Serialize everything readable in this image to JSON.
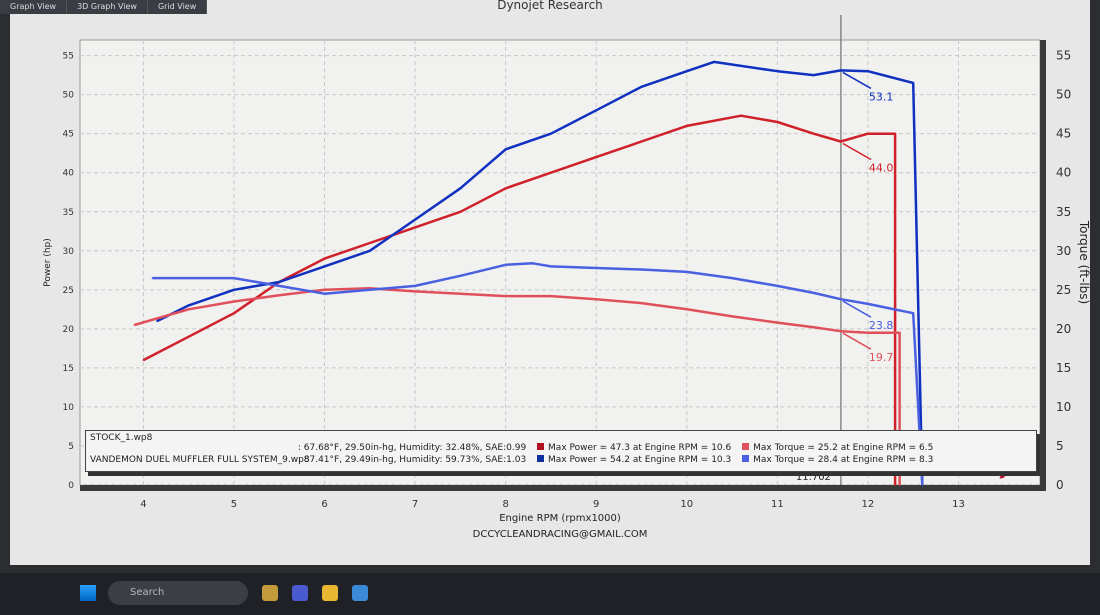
{
  "window": {
    "title": "Dynojet Research",
    "tabs": [
      "Graph View",
      "3D Graph View",
      "Grid View"
    ]
  },
  "taskbar": {
    "search_placeholder": "Search"
  },
  "legend": {
    "runs": [
      {
        "file": "STOCK_1.wp8",
        "conditions": ": 67.68°F, 29.50in-hg, Humidity: 32.48%, SAE:0.99",
        "max_power": "Max Power = 47.3 at Engine RPM = 10.6",
        "max_torque": "Max Torque = 25.2 at Engine RPM = 6.5",
        "color": "#d0202a",
        "torque_color": "#e0505a"
      },
      {
        "file": "VANDEMON DUEL MUFFLER FULL SYSTEM_9.wp8",
        "conditions": ": 87.41°F, 29.49in-hg, Humidity: 59.73%, SAE:1.03",
        "max_power": "Max Power = 54.2 at Engine RPM = 10.3",
        "max_torque": "Max Torque = 28.4 at Engine RPM = 8.3",
        "color": "#1030c0",
        "torque_color": "#4a60e0"
      }
    ]
  },
  "brand": "DYNOJET",
  "footer_email": "DCCYCLEANDRACING@GMAIL.COM",
  "chart_data": {
    "type": "line",
    "title": "Dynojet Research",
    "xlabel": "Engine RPM (rpmx1000)",
    "ylabel": "Power (hp)",
    "y2label": "Torque (ft-lbs)",
    "xlim": [
      3.3,
      13.9
    ],
    "ylim": [
      0,
      57
    ],
    "y2lim": [
      0,
      57
    ],
    "xticks": [
      4,
      5,
      6,
      7,
      8,
      9,
      10,
      11,
      12,
      13
    ],
    "yticks": [
      0,
      5,
      10,
      15,
      20,
      25,
      30,
      35,
      40,
      45,
      50,
      55
    ],
    "grid": true,
    "cursor": {
      "x": 11.702,
      "label": "11.702"
    },
    "series": [
      {
        "name": "STOCK_1.wp8 Power",
        "color": "#d0202a",
        "x": [
          4.0,
          4.5,
          5.0,
          5.5,
          6.0,
          6.5,
          7.0,
          7.5,
          8.0,
          8.5,
          9.0,
          9.5,
          10.0,
          10.6,
          11.0,
          11.4,
          11.7,
          12.0,
          12.3,
          12.3
        ],
        "y": [
          16,
          19,
          22,
          26,
          29,
          31,
          33,
          35,
          38,
          40,
          42,
          44,
          46,
          47.3,
          46.5,
          45,
          44.0,
          45,
          45,
          0
        ],
        "cursor_label": "44.0"
      },
      {
        "name": "VANDEMON DUEL MUFFLER FULL SYSTEM_9.wp8 Power",
        "color": "#1030c0",
        "x": [
          4.15,
          4.5,
          5.0,
          5.5,
          6.0,
          6.5,
          7.0,
          7.5,
          8.0,
          8.5,
          9.0,
          9.5,
          10.0,
          10.3,
          11.0,
          11.4,
          11.7,
          12.0,
          12.5,
          12.6
        ],
        "y": [
          21,
          23,
          25,
          26,
          28,
          30,
          34,
          38,
          43,
          45,
          48,
          51,
          53,
          54.2,
          53,
          52.5,
          53.1,
          53,
          51.5,
          0
        ],
        "cursor_label": "53.1"
      },
      {
        "name": "STOCK_1.wp8 Torque",
        "color": "#e0505a",
        "x": [
          3.9,
          4.5,
          5.0,
          5.5,
          6.0,
          6.5,
          7.0,
          7.5,
          8.0,
          8.5,
          9.0,
          9.5,
          10.0,
          10.5,
          11.0,
          11.4,
          11.7,
          12.0,
          12.35,
          12.35
        ],
        "y": [
          20.5,
          22.5,
          23.5,
          24.3,
          25,
          25.2,
          24.8,
          24.5,
          24.2,
          24.2,
          23.8,
          23.3,
          22.5,
          21.6,
          20.8,
          20.2,
          19.7,
          19.5,
          19.5,
          0
        ],
        "cursor_label": "19.7"
      },
      {
        "name": "VANDEMON DUEL MUFFLER FULL SYSTEM_9.wp8 Torque",
        "color": "#4a60e0",
        "x": [
          4.1,
          4.5,
          5.0,
          5.5,
          6.0,
          6.5,
          7.0,
          7.5,
          8.0,
          8.3,
          8.5,
          9.0,
          9.5,
          10.0,
          10.5,
          11.0,
          11.4,
          11.7,
          12.0,
          12.5,
          12.6
        ],
        "y": [
          26.5,
          26.5,
          26.5,
          25.5,
          24.5,
          25,
          25.5,
          26.8,
          28.2,
          28.4,
          28,
          27.8,
          27.6,
          27.3,
          26.5,
          25.5,
          24.6,
          23.8,
          23.2,
          22,
          0
        ],
        "cursor_label": "23.8"
      }
    ]
  }
}
